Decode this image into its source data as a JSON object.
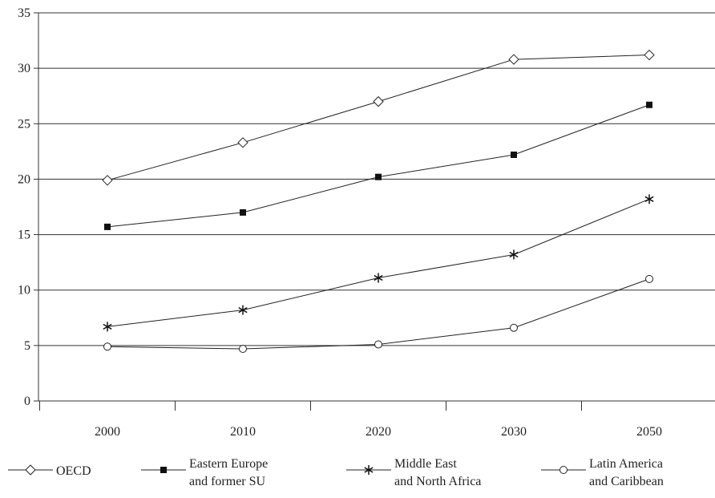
{
  "chart_data": {
    "type": "line",
    "categories": [
      "2000",
      "2010",
      "2020",
      "2030",
      "2050"
    ],
    "ylim": [
      0,
      35
    ],
    "yticks": [
      0,
      5,
      10,
      15,
      20,
      25,
      30,
      35
    ],
    "grid": true,
    "legend_position": "bottom",
    "series": [
      {
        "name": "OECD",
        "marker": "diamond-open",
        "values": [
          19.9,
          23.3,
          27.0,
          30.8,
          31.2
        ]
      },
      {
        "name": "Eastern Europe and former SU",
        "name_lines": [
          "Eastern Europe",
          "and former SU"
        ],
        "marker": "square-filled",
        "values": [
          15.7,
          17.0,
          20.2,
          22.2,
          26.7
        ]
      },
      {
        "name": "Middle East and North Africa",
        "name_lines": [
          "Middle East",
          "and North Africa"
        ],
        "marker": "asterisk",
        "values": [
          6.7,
          8.2,
          11.1,
          13.2,
          18.2
        ]
      },
      {
        "name": "Latin America and Caribbean",
        "name_lines": [
          "Latin America",
          "and Caribbean"
        ],
        "marker": "circle-open",
        "values": [
          4.9,
          4.7,
          5.1,
          6.6,
          11.0
        ]
      }
    ]
  }
}
